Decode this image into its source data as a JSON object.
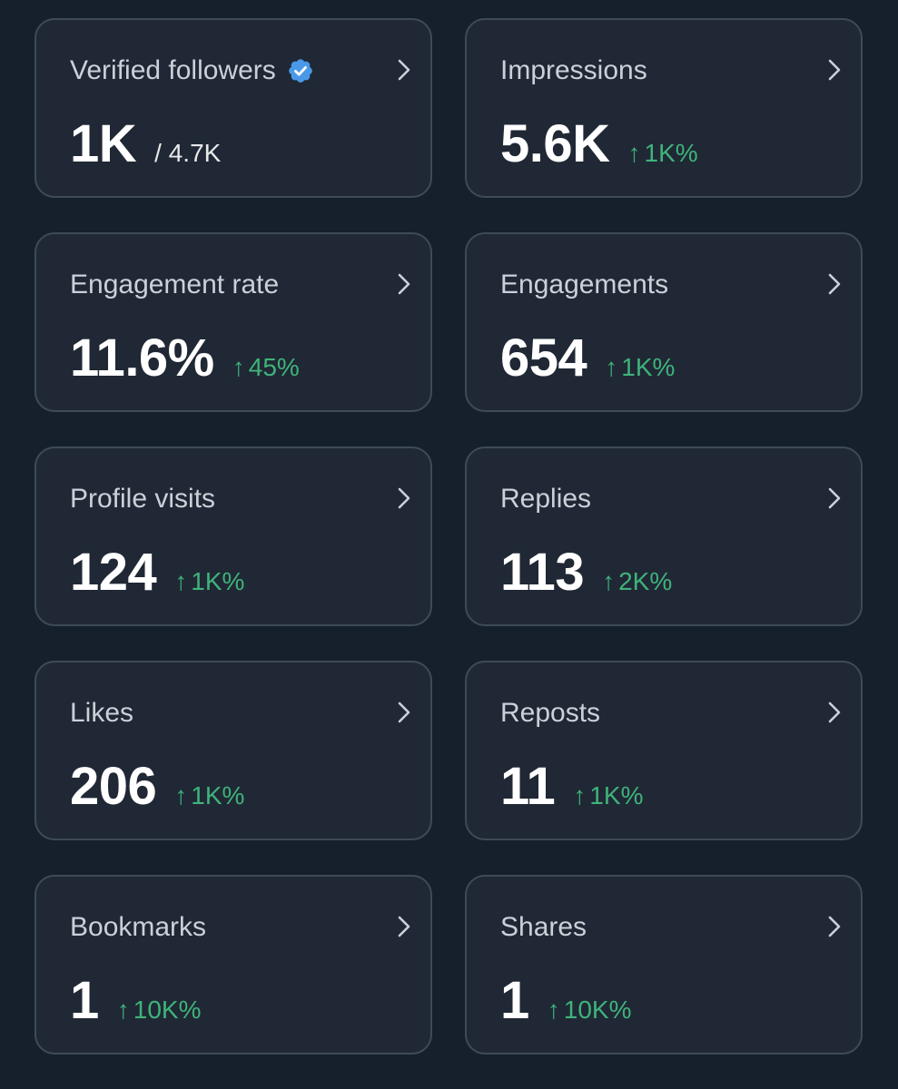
{
  "colors": {
    "background": "#16202c",
    "card_background": "#202835",
    "card_border": "#3e4a58",
    "title_text": "#c9d1d9",
    "value_text": "#ffffff",
    "positive_change": "#3fb37a",
    "verified_badge": "#4a99e9"
  },
  "icons": {
    "verified": "verified-badge-icon",
    "chevron": "chevron-right-icon",
    "up_arrow": "up-arrow"
  },
  "cards": [
    {
      "title": "Verified followers",
      "value": "1K",
      "denominator": "/ 4.7K",
      "change": "",
      "verified": true
    },
    {
      "title": "Impressions",
      "value": "5.6K",
      "denominator": "",
      "change": "1K%"
    },
    {
      "title": "Engagement rate",
      "value": "11.6%",
      "denominator": "",
      "change": "45%"
    },
    {
      "title": "Engagements",
      "value": "654",
      "denominator": "",
      "change": "1K%"
    },
    {
      "title": "Profile visits",
      "value": "124",
      "denominator": "",
      "change": "1K%"
    },
    {
      "title": "Replies",
      "value": "113",
      "denominator": "",
      "change": "2K%"
    },
    {
      "title": "Likes",
      "value": "206",
      "denominator": "",
      "change": "1K%"
    },
    {
      "title": "Reposts",
      "value": "11",
      "denominator": "",
      "change": "1K%"
    },
    {
      "title": "Bookmarks",
      "value": "1",
      "denominator": "",
      "change": "10K%"
    },
    {
      "title": "Shares",
      "value": "1",
      "denominator": "",
      "change": "10K%"
    }
  ]
}
